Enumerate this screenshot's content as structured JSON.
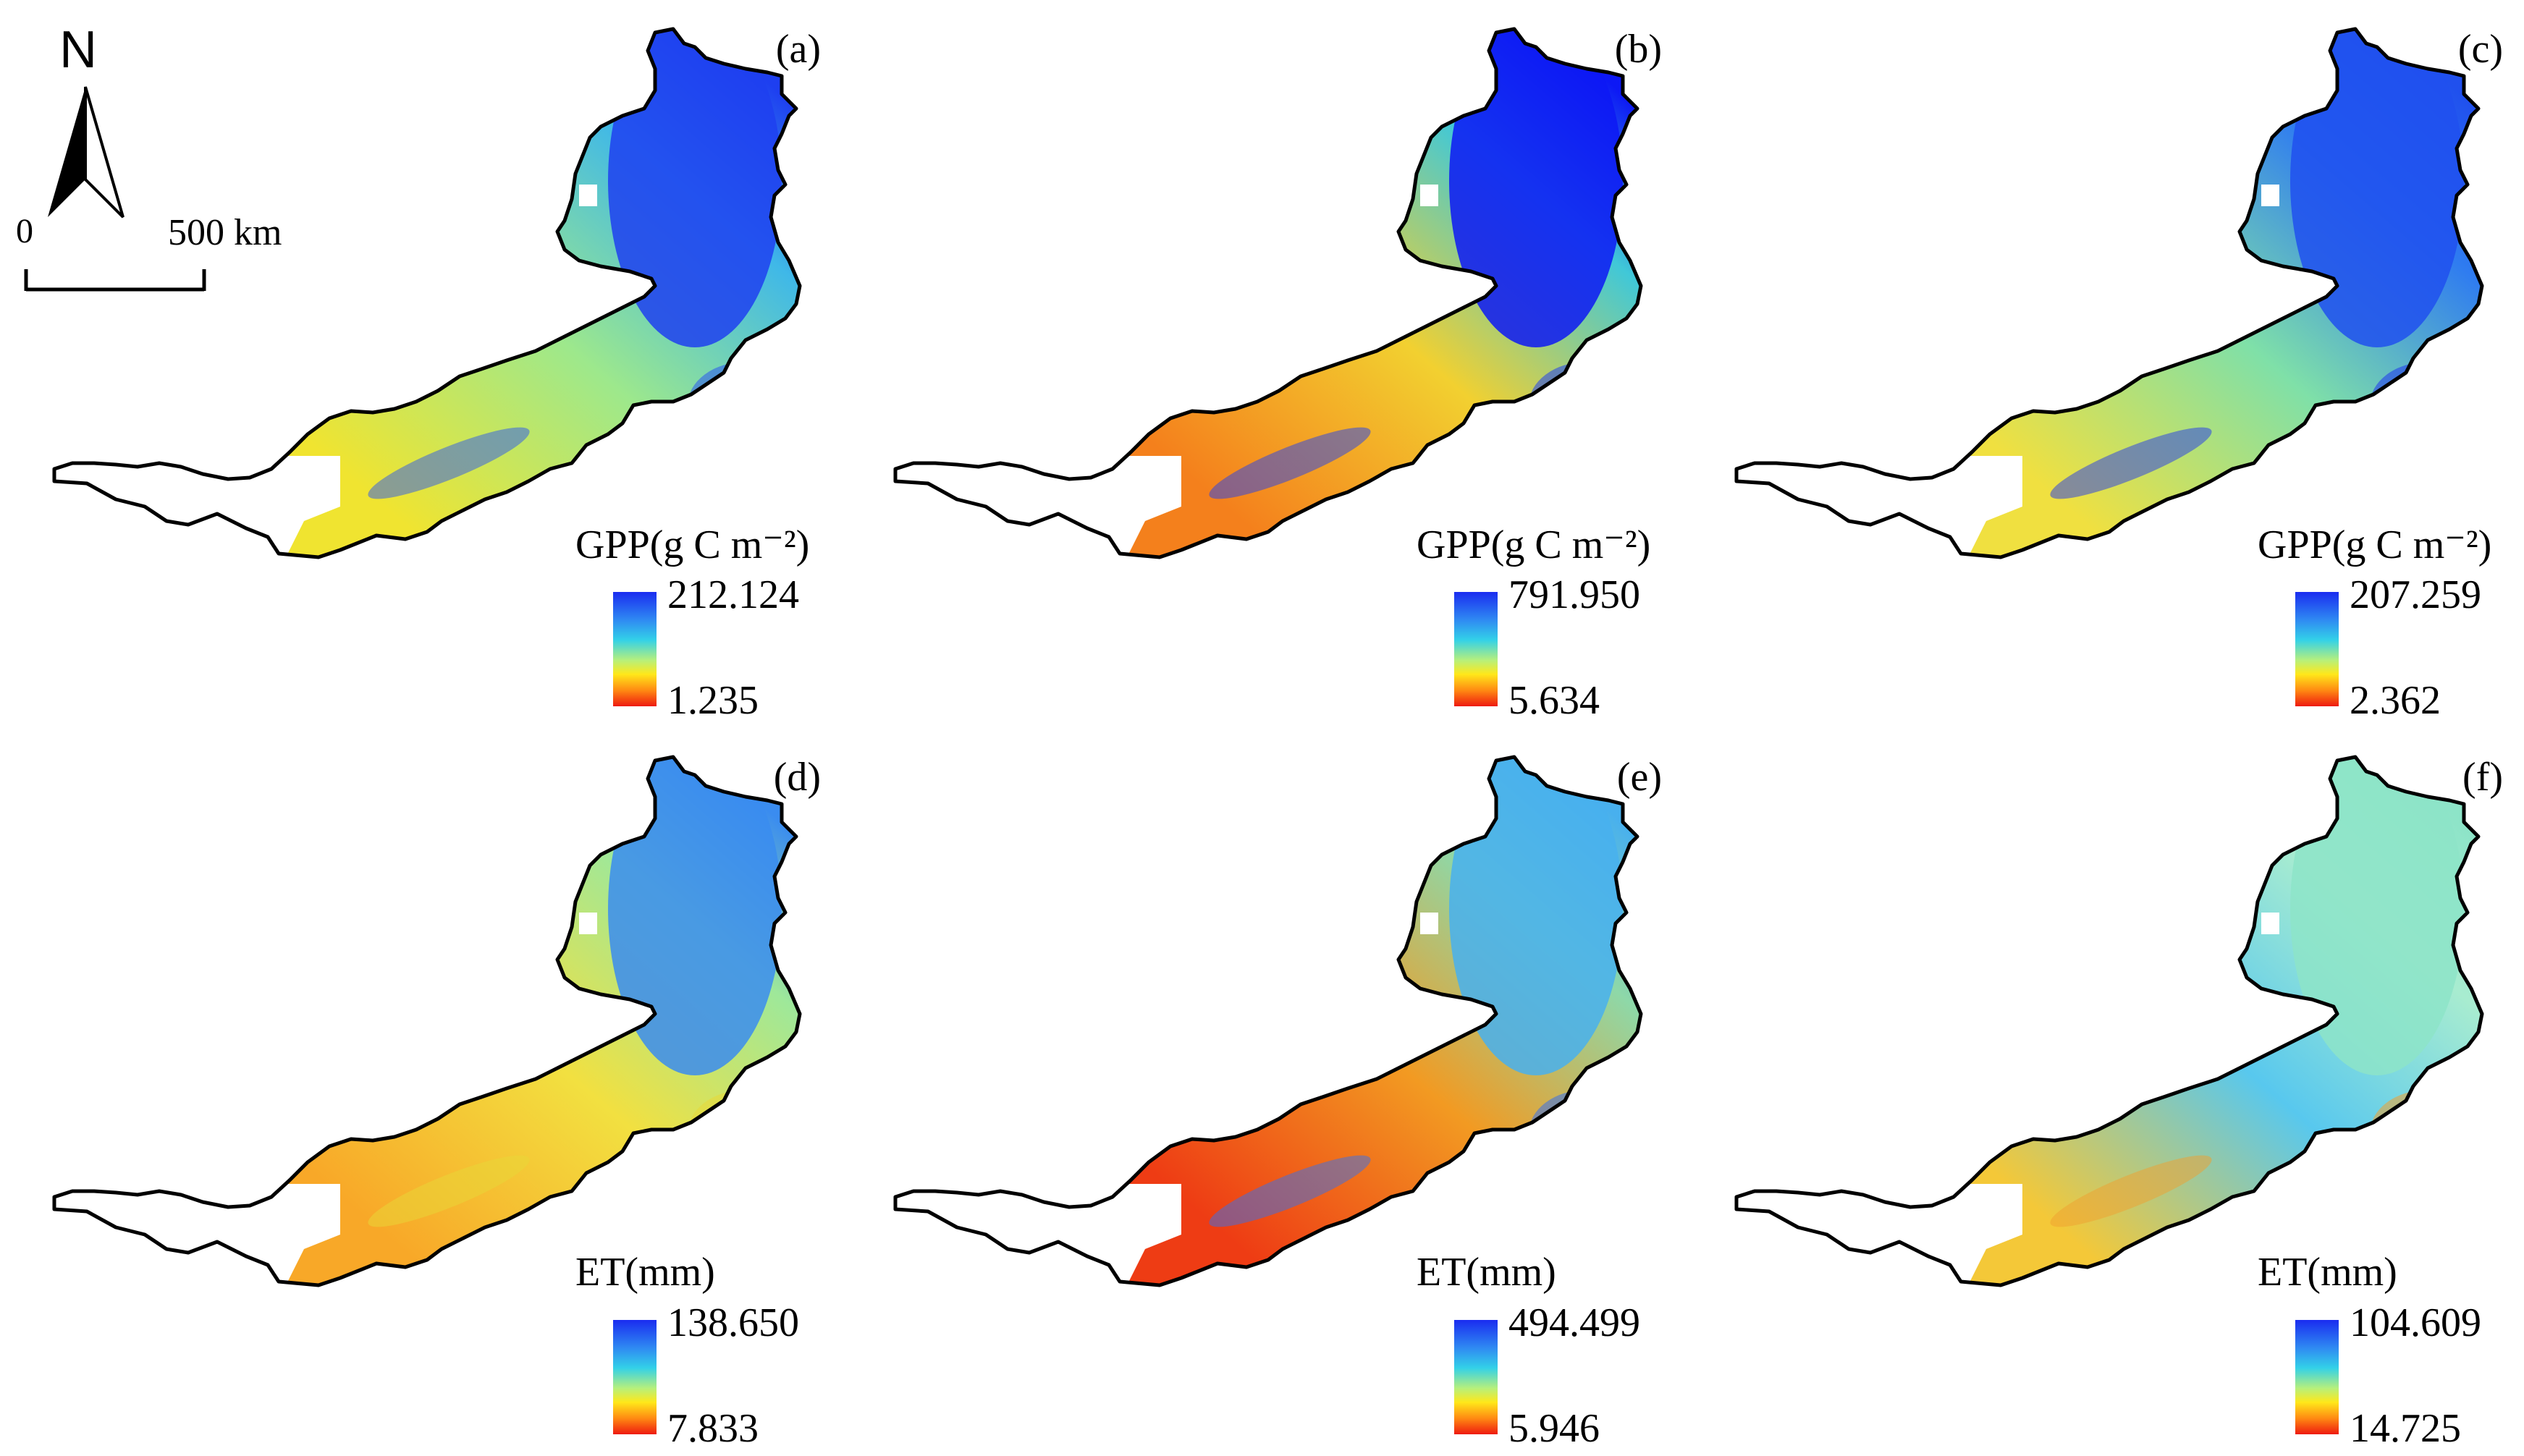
{
  "north_arrow": {
    "letter": "N"
  },
  "scale_bar": {
    "zero_label": "0",
    "max_label": "500  km"
  },
  "panels": [
    {
      "label": "(a)",
      "legend_title": "GPP(g C m⁻²)",
      "max": "212.124",
      "min": "1.235",
      "colors": {
        "west": "#f0e430",
        "center": "#9de88c",
        "east": "#3fb8e8",
        "north": "#1e3ff0",
        "spots": "#2a55f0",
        "mask": "#ffffff"
      }
    },
    {
      "label": "(b)",
      "legend_title": "GPP(g C m⁻²)",
      "max": "791.950",
      "min": "5.634",
      "colors": {
        "west": "#f4801c",
        "center": "#f2d030",
        "east": "#40c8d8",
        "north": "#0d18f5",
        "spots": "#2040f0",
        "mask": "#ffffff"
      }
    },
    {
      "label": "(c)",
      "legend_title": "GPP(g C m⁻²)",
      "max": "207.259",
      "min": "2.362",
      "colors": {
        "west": "#f0e040",
        "center": "#7fe0a8",
        "east": "#2f7cf0",
        "north": "#2050ee",
        "spots": "#1f35ee",
        "mask": "#ffffff"
      }
    },
    {
      "label": "(d)",
      "legend_title": "ET(mm)",
      "max": "138.650",
      "min": "7.833",
      "colors": {
        "west": "#f8a828",
        "center": "#f2e040",
        "east": "#9ee89a",
        "north": "#3a8cf0",
        "spots": "#e8d838",
        "mask": "#ffffff"
      }
    },
    {
      "label": "(e)",
      "legend_title": "ET(mm)",
      "max": "494.499",
      "min": "5.946",
      "colors": {
        "west": "#ee3c14",
        "center": "#f29a22",
        "east": "#8ed8a8",
        "north": "#48b0ee",
        "spots": "#3670ec",
        "mask": "#ffffff"
      }
    },
    {
      "label": "(f)",
      "legend_title": "ET(mm)",
      "max": "104.609",
      "min": "14.725",
      "colors": {
        "west": "#f4c838",
        "center": "#58c8ee",
        "east": "#a8ecd0",
        "north": "#8de4c8",
        "spots": "#f0a030",
        "mask": "#ffffff"
      }
    }
  ]
}
